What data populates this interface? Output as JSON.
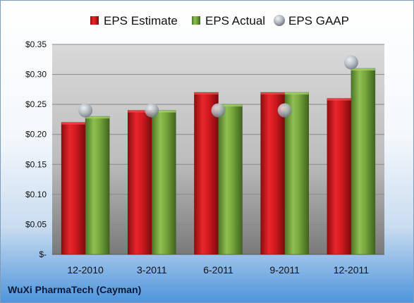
{
  "footer": {
    "company": "WuXi PharmaTech (Cayman)"
  },
  "colors": {
    "estimate": "#c8151b",
    "actual": "#72a13a",
    "gaap": "#a9b1bb"
  },
  "chart_data": {
    "type": "bar",
    "categories": [
      "12-2010",
      "3-2011",
      "6-2011",
      "9-2011",
      "12-2011"
    ],
    "series": [
      {
        "name": "EPS Estimate",
        "kind": "bar",
        "values": [
          0.22,
          0.24,
          0.27,
          0.27,
          0.26
        ]
      },
      {
        "name": "EPS Actual",
        "kind": "bar",
        "values": [
          0.23,
          0.24,
          0.25,
          0.27,
          0.31
        ]
      },
      {
        "name": "EPS GAAP",
        "kind": "marker",
        "values": [
          0.24,
          0.24,
          0.24,
          0.24,
          0.32
        ]
      }
    ],
    "ylim": [
      0,
      0.35
    ],
    "yticks": [
      0,
      0.05,
      0.1,
      0.15,
      0.2,
      0.25,
      0.3,
      0.35
    ],
    "ytick_labels": [
      "$-",
      "$0.05",
      "$0.10",
      "$0.15",
      "$0.20",
      "$0.25",
      "$0.30",
      "$0.35"
    ],
    "grid": true,
    "legend": "top"
  }
}
